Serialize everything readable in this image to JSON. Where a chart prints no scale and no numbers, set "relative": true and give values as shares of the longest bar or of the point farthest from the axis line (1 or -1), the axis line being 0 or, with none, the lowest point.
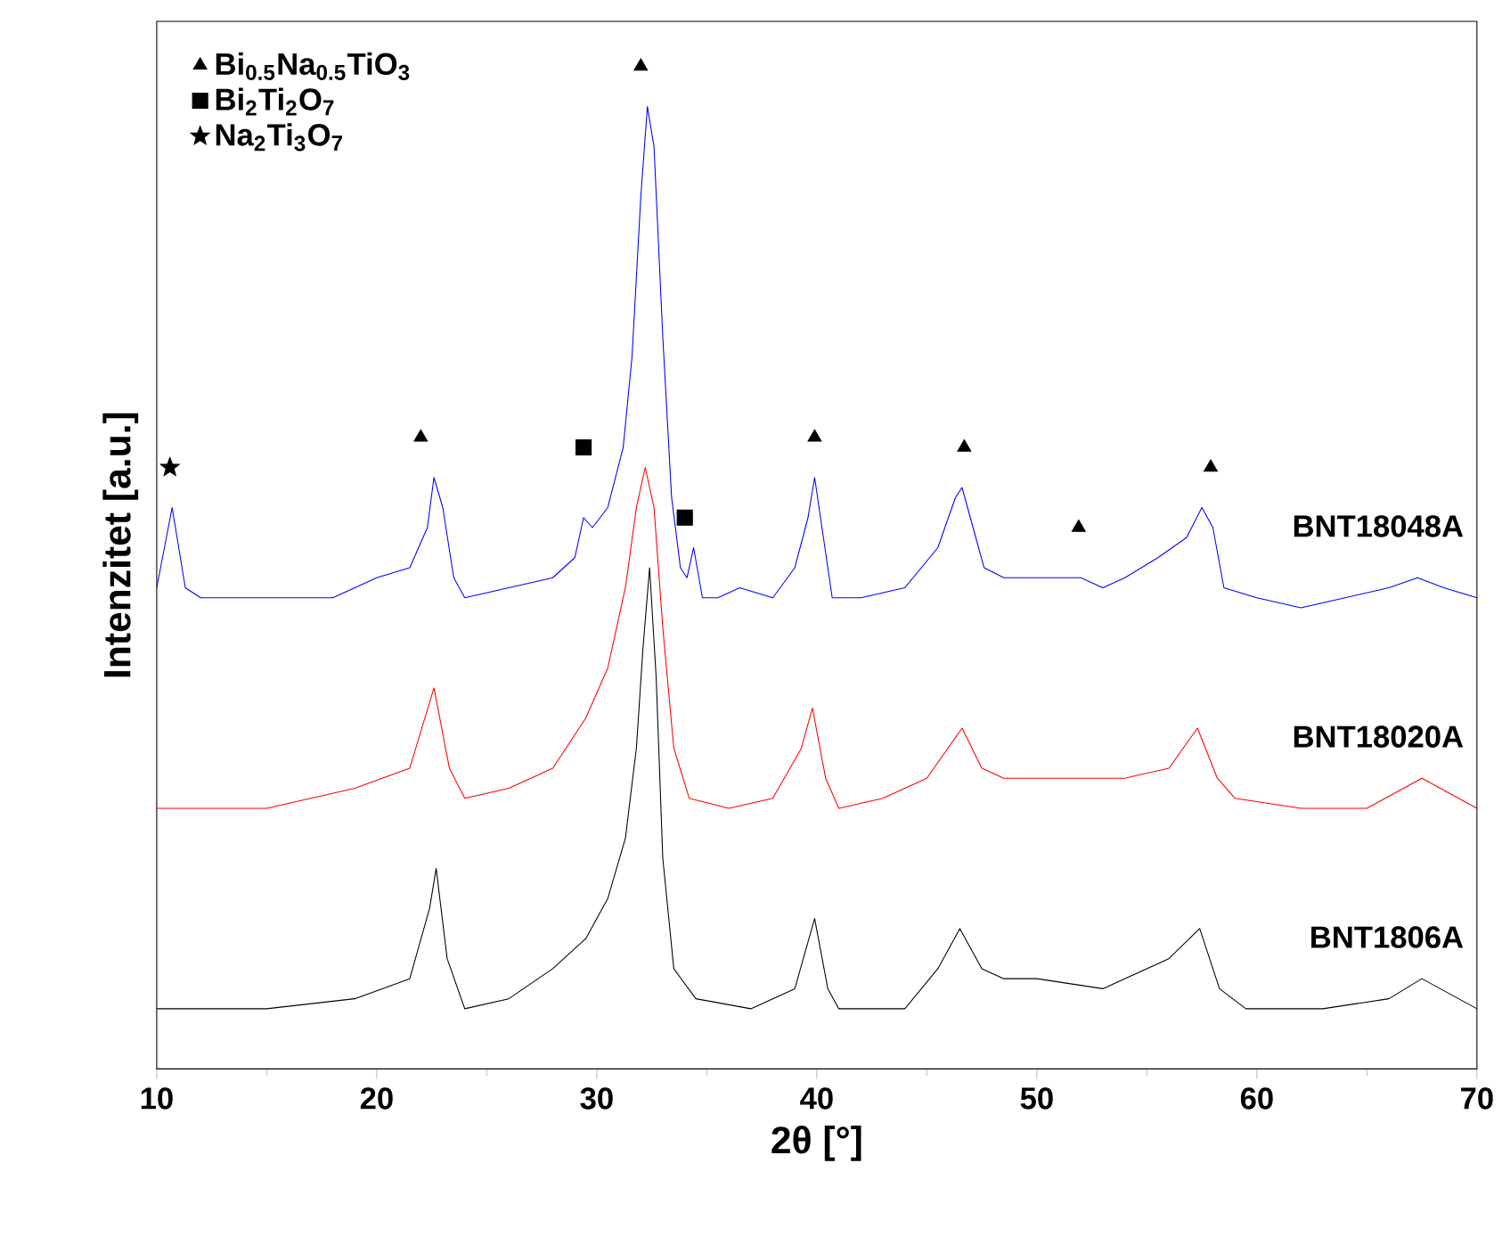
{
  "chart_data": {
    "type": "line",
    "relative": true,
    "xlabel": "2θ [°]",
    "ylabel": "Intenzitet [a.u.]",
    "xlim": [
      10,
      70
    ],
    "xticks": [
      10,
      20,
      30,
      40,
      50,
      60,
      70
    ],
    "legend": "top left",
    "marker": "none",
    "line_style": "solid",
    "series": [
      {
        "name": "BNT18048A",
        "color": "#0000ff",
        "x": [
          10,
          10.7,
          11.3,
          12,
          15,
          18,
          20,
          21.5,
          22.3,
          22.6,
          23.0,
          23.5,
          24,
          26,
          28,
          29.0,
          29.4,
          29.8,
          30.5,
          31.2,
          31.6,
          32.0,
          32.3,
          32.6,
          33.0,
          33.4,
          33.8,
          34.1,
          34.4,
          34.8,
          35.5,
          36.5,
          38,
          39.0,
          39.6,
          39.9,
          40.3,
          40.7,
          42,
          44,
          45.5,
          46.3,
          46.6,
          47.1,
          47.6,
          48.5,
          50,
          52,
          53,
          54,
          55.5,
          56.8,
          57.5,
          58,
          58.5,
          60,
          62,
          64,
          66,
          67.3,
          68.5,
          70
        ],
        "values": [
          0.48,
          0.56,
          0.48,
          0.47,
          0.47,
          0.47,
          0.49,
          0.5,
          0.54,
          0.59,
          0.56,
          0.49,
          0.47,
          0.48,
          0.49,
          0.51,
          0.55,
          0.54,
          0.56,
          0.62,
          0.71,
          0.87,
          0.96,
          0.92,
          0.73,
          0.57,
          0.5,
          0.49,
          0.52,
          0.47,
          0.47,
          0.48,
          0.47,
          0.5,
          0.55,
          0.59,
          0.53,
          0.47,
          0.47,
          0.48,
          0.52,
          0.57,
          0.58,
          0.54,
          0.5,
          0.49,
          0.49,
          0.49,
          0.48,
          0.49,
          0.51,
          0.53,
          0.56,
          0.54,
          0.48,
          0.47,
          0.46,
          0.47,
          0.48,
          0.49,
          0.48,
          0.47
        ]
      },
      {
        "name": "BNT18020A",
        "color": "#ff0000",
        "x": [
          10,
          15,
          19,
          21.5,
          22.6,
          23.3,
          24,
          26,
          28,
          29.5,
          30.5,
          31.3,
          31.8,
          32.2,
          32.6,
          33.0,
          33.5,
          34.2,
          36,
          38,
          39.3,
          39.8,
          40.4,
          41,
          43,
          45,
          46.6,
          47.5,
          48.5,
          50,
          52,
          54,
          56,
          57.3,
          58.2,
          59,
          62,
          65,
          67.5,
          70
        ],
        "values": [
          0.26,
          0.26,
          0.28,
          0.3,
          0.38,
          0.3,
          0.27,
          0.28,
          0.3,
          0.35,
          0.4,
          0.48,
          0.56,
          0.6,
          0.56,
          0.44,
          0.32,
          0.27,
          0.26,
          0.27,
          0.32,
          0.36,
          0.29,
          0.26,
          0.27,
          0.29,
          0.34,
          0.3,
          0.29,
          0.29,
          0.29,
          0.29,
          0.3,
          0.34,
          0.29,
          0.27,
          0.26,
          0.26,
          0.29,
          0.26
        ]
      },
      {
        "name": "BNT1806A",
        "color": "#000000",
        "x": [
          10,
          15,
          19,
          21.5,
          22.4,
          22.7,
          23.2,
          24,
          26,
          28,
          29.5,
          30.5,
          31.3,
          31.8,
          32.1,
          32.4,
          32.7,
          33.0,
          33.5,
          34.5,
          37,
          39,
          39.9,
          40.5,
          41,
          44,
          45.5,
          46.5,
          47.5,
          48.5,
          50,
          53,
          56,
          57.4,
          58.3,
          59.5,
          63,
          66,
          67.5,
          70
        ],
        "values": [
          0.06,
          0.06,
          0.07,
          0.09,
          0.16,
          0.2,
          0.11,
          0.06,
          0.07,
          0.1,
          0.13,
          0.17,
          0.23,
          0.32,
          0.42,
          0.5,
          0.39,
          0.21,
          0.1,
          0.07,
          0.06,
          0.08,
          0.15,
          0.08,
          0.06,
          0.06,
          0.1,
          0.14,
          0.1,
          0.09,
          0.09,
          0.08,
          0.11,
          0.14,
          0.08,
          0.06,
          0.06,
          0.07,
          0.09,
          0.06
        ]
      },
      {
        "name": "Bi$_{0.5}$Na$_{0.5}$TiO$_{3}$",
        "type": "scatter",
        "marker": "triangle",
        "color": "#000000",
        "x": [
          22.0,
          32.0,
          39.9,
          46.7,
          51.9,
          57.9
        ],
        "values": [
          0.63,
          1,
          0.63,
          0.62,
          0.54,
          0.6
        ]
      },
      {
        "name": "Bi$_{2}$Ti$_{2}$O$_{7}$",
        "type": "scatter",
        "marker": "square",
        "color": "#000000",
        "x": [
          29.4,
          34.0
        ],
        "values": [
          0.62,
          0.55
        ]
      },
      {
        "name": "Na$_{2}$Ti$_{3}$O$_{7}$",
        "type": "scatter",
        "marker": "star",
        "color": "#000000",
        "x": [
          10.6
        ],
        "values": [
          0.6
        ]
      }
    ]
  }
}
